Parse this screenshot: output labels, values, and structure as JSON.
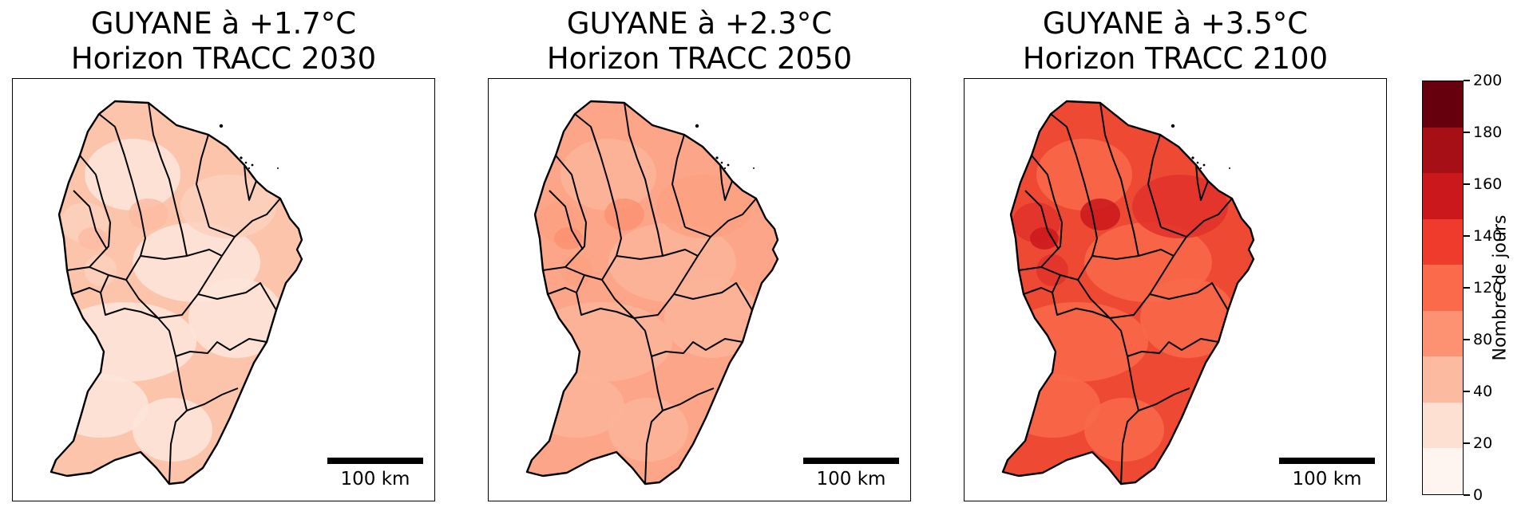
{
  "panels": [
    {
      "title_line1": "GUYANE à +1.7°C",
      "title_line2": "Horizon TRACC 2030",
      "scalebar_label": "100 km",
      "fills": [
        "#fde5da",
        "#fcd0bc",
        "#fbbba2"
      ],
      "base": "#fcc5ab"
    },
    {
      "title_line1": "GUYANE à +2.3°C",
      "title_line2": "Horizon TRACC 2050",
      "scalebar_label": "100 km",
      "fills": [
        "#fcb499",
        "#fba183",
        "#fc9272"
      ],
      "base": "#fca588"
    },
    {
      "title_line1": "GUYANE à +3.5°C",
      "title_line2": "Horizon TRACC 2100",
      "scalebar_label": "100 km",
      "fills": [
        "#f86a4a",
        "#e2312b",
        "#cb181d"
      ],
      "base": "#ee4a33"
    }
  ],
  "colorbar": {
    "label": "Nombre de jours",
    "ticks": [
      "0",
      "20",
      "40",
      "80",
      "120",
      "140",
      "160",
      "180",
      "200"
    ],
    "colors": [
      "#fff5f0",
      "#fee0d2",
      "#fcbba1",
      "#fc9272",
      "#fb6a4a",
      "#ef3b2c",
      "#cb181d",
      "#a50f15",
      "#67000d"
    ]
  }
}
